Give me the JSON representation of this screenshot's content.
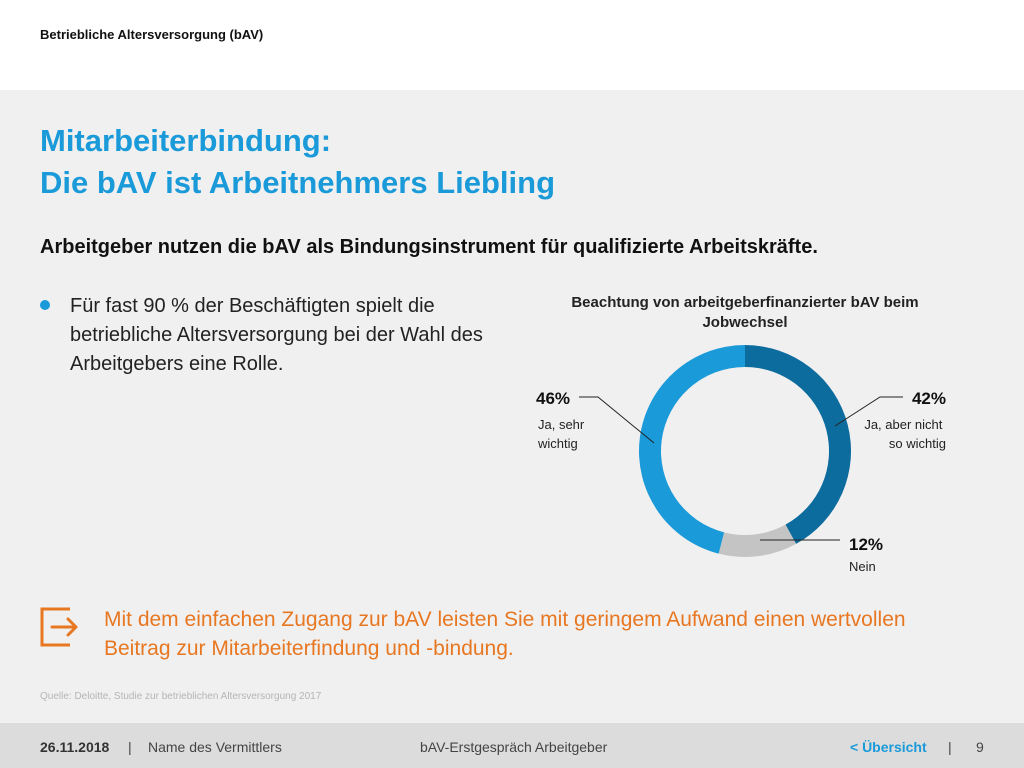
{
  "header": {
    "section": "Betriebliche Altersversorgung (bAV)"
  },
  "title": {
    "line1": "Mitarbeiterbindung:",
    "line2": "Die bAV ist Arbeitnehmers Liebling"
  },
  "subtitle": "Arbeitgeber nutzen die bAV als Bindungsinstrument für qualifizierte Arbeitskräfte.",
  "bullets": [
    {
      "text": "Für fast 90 % der Beschäftigten spielt die betriebliche Altersversorgung bei der Wahl des Arbeitgebers eine Rolle."
    }
  ],
  "chart_data": {
    "type": "pie",
    "title": "Beachtung von arbeitgeberfinanzierter bAV beim Jobwechsel",
    "slices": [
      {
        "value": 42,
        "label": "42%",
        "name": "Ja, aber nicht so wichtig",
        "color": "#0d6c9e"
      },
      {
        "value": 12,
        "label": "12%",
        "name": "Nein",
        "color": "#c4c4c4"
      },
      {
        "value": 46,
        "label": "46%",
        "name": "Ja, sehr wichtig",
        "color": "#1a9ad9"
      }
    ]
  },
  "callout": {
    "icon": "arrow-right-box-icon",
    "text": "Mit dem einfachen Zugang zur bAV leisten Sie mit geringem Aufwand einen wertvollen Beitrag zur Mitarbeiterfindung und -bindung.",
    "color": "#e87722"
  },
  "source": "Quelle: Deloitte, Studie zur betrieblichen Altersversorgung 2017",
  "footer": {
    "date": "26.11.2018",
    "separator": "|",
    "agent": "Name des Vermittlers",
    "document": "bAV-Erstgespräch Arbeitgeber",
    "nav_link": "< Übersicht",
    "page": "9"
  },
  "colors": {
    "accent": "#1a9ad9",
    "dark_blue": "#0d6c9e",
    "orange": "#e87722",
    "gray": "#c4c4c4"
  }
}
